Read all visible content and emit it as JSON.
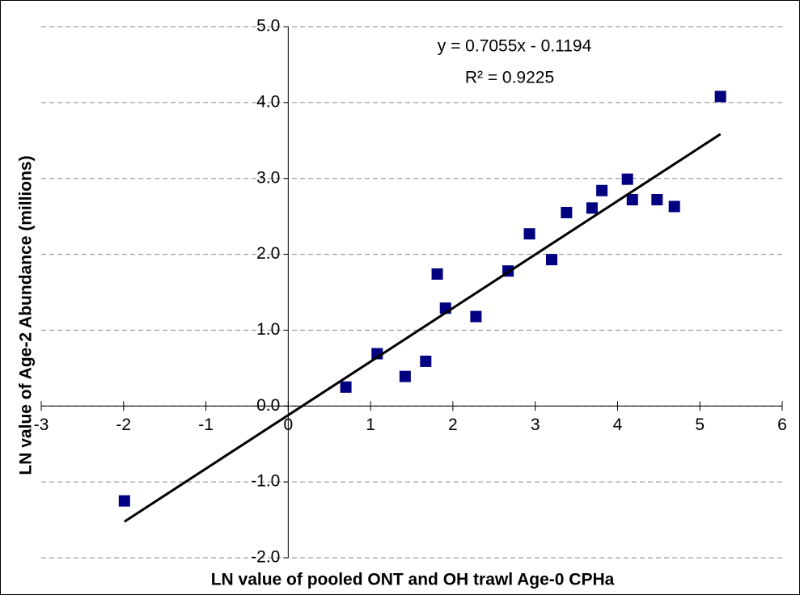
{
  "chart_data": {
    "type": "scatter",
    "x_label": "LN value of pooled ONT and OH trawl Age-0 CPHa",
    "y_label": "LN value of Age-2 Abundance (millions)",
    "x": [
      -1.99,
      0.7,
      1.08,
      1.42,
      1.67,
      1.81,
      1.91,
      2.28,
      2.67,
      2.93,
      3.2,
      3.38,
      3.69,
      3.81,
      4.12,
      4.18,
      4.48,
      4.69,
      5.25
    ],
    "series": [
      {
        "color": "#000080",
        "values": [
          -1.25,
          0.25,
          0.69,
          0.39,
          0.59,
          1.74,
          1.29,
          1.18,
          1.78,
          2.27,
          1.93,
          2.55,
          2.61,
          2.84,
          2.99,
          2.72,
          2.72,
          2.63,
          4.08
        ]
      }
    ],
    "trendline": {
      "slope": 0.7055,
      "intercept": -0.1194,
      "color": "#000000",
      "equation": "y = 0.7055x - 0.1194",
      "r2_label": "R² = 0.9225"
    },
    "xlim": [
      -3,
      6
    ],
    "xticks": [
      -3,
      -2,
      -1,
      0,
      1,
      2,
      3,
      4,
      5,
      6
    ],
    "ylim": [
      -2,
      5
    ],
    "yticks": [
      {
        "value": -2,
        "label": "-2.0"
      },
      {
        "value": -1,
        "label": "-1.0"
      },
      {
        "value": 0,
        "label": "0.0"
      },
      {
        "value": 1,
        "label": "1.0"
      },
      {
        "value": 2,
        "label": "2.0"
      },
      {
        "value": 3,
        "label": "3.0"
      },
      {
        "value": 4,
        "label": "4.0"
      },
      {
        "value": 5,
        "label": "5.0"
      }
    ],
    "grid": true
  }
}
